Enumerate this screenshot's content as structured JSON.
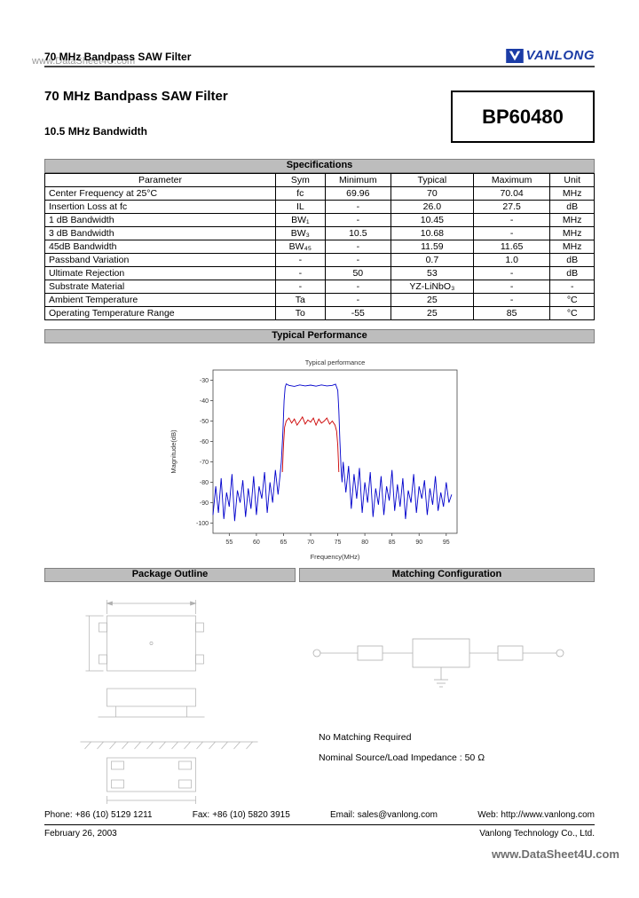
{
  "watermark": {
    "top": "www.DataSheet4U.com",
    "bottom": "www.DataSheet4U.com"
  },
  "header": {
    "running_title": "70 MHz Bandpass SAW Filter",
    "logo_text": "VANLONG"
  },
  "title_block": {
    "title": "70 MHz Bandpass SAW Filter",
    "subtitle": "10.5 MHz Bandwidth",
    "part_number": "BP60480"
  },
  "specs": {
    "section_title": "Specifications",
    "columns": [
      "Parameter",
      "Sym",
      "Minimum",
      "Typical",
      "Maximum",
      "Unit"
    ],
    "rows": [
      [
        "Center Frequency at 25°C",
        "fc",
        "69.96",
        "70",
        "70.04",
        "MHz"
      ],
      [
        "Insertion Loss at fc",
        "IL",
        "-",
        "26.0",
        "27.5",
        "dB"
      ],
      [
        "1 dB Bandwidth",
        "BW₁",
        "-",
        "10.45",
        "-",
        "MHz"
      ],
      [
        "3 dB Bandwidth",
        "BW₃",
        "10.5",
        "10.68",
        "-",
        "MHz"
      ],
      [
        "45dB Bandwidth",
        "BW₄₅",
        "-",
        "11.59",
        "11.65",
        "MHz"
      ],
      [
        "Passband Variation",
        "-",
        "-",
        "0.7",
        "1.0",
        "dB"
      ],
      [
        "Ultimate Rejection",
        "-",
        "50",
        "53",
        "-",
        "dB"
      ],
      [
        "Substrate Material",
        "-",
        "-",
        "YZ-LiNbO₃",
        "-",
        "-"
      ],
      [
        "Ambient Temperature",
        "Ta",
        "-",
        "25",
        "-",
        "°C"
      ],
      [
        "Operating Temperature Range",
        "To",
        "-55",
        "25",
        "85",
        "°C"
      ]
    ]
  },
  "performance": {
    "section_title": "Typical Performance"
  },
  "chart_data": {
    "type": "line",
    "title": "Typical performance",
    "xlabel": "Frequency(MHz)",
    "ylabel": "Magnitude(dB)",
    "xlim": [
      52,
      97
    ],
    "ylim": [
      -105,
      -25
    ],
    "xticks": [
      55,
      60,
      65,
      70,
      75,
      80,
      85,
      90,
      95
    ],
    "yticks": [
      -30,
      -40,
      -50,
      -60,
      -70,
      -80,
      -90,
      -100
    ],
    "legend_position": "none",
    "grid": false,
    "series": [
      {
        "name": "wideband response",
        "color": "#0000cc",
        "points": [
          [
            52.0,
            -96
          ],
          [
            52.5,
            -82
          ],
          [
            53.0,
            -95
          ],
          [
            53.5,
            -78
          ],
          [
            54.0,
            -98
          ],
          [
            54.5,
            -85
          ],
          [
            55.0,
            -92
          ],
          [
            55.5,
            -76
          ],
          [
            56.0,
            -99
          ],
          [
            56.5,
            -84
          ],
          [
            57.0,
            -90
          ],
          [
            57.5,
            -79
          ],
          [
            58.0,
            -97
          ],
          [
            58.5,
            -83
          ],
          [
            59.0,
            -93
          ],
          [
            59.5,
            -77
          ],
          [
            60.0,
            -96
          ],
          [
            60.5,
            -82
          ],
          [
            61.0,
            -88
          ],
          [
            61.5,
            -75
          ],
          [
            62.0,
            -95
          ],
          [
            62.5,
            -80
          ],
          [
            63.0,
            -90
          ],
          [
            63.5,
            -74
          ],
          [
            64.0,
            -86
          ],
          [
            64.3,
            -78
          ],
          [
            64.6,
            -70
          ],
          [
            64.9,
            -55
          ],
          [
            65.1,
            -40
          ],
          [
            65.3,
            -33.5
          ],
          [
            65.5,
            -31.8
          ],
          [
            66.0,
            -32.5
          ],
          [
            67.0,
            -33.0
          ],
          [
            68.0,
            -32.3
          ],
          [
            69.0,
            -32.8
          ],
          [
            70.0,
            -32.4
          ],
          [
            71.0,
            -32.9
          ],
          [
            72.0,
            -32.3
          ],
          [
            73.0,
            -32.8
          ],
          [
            74.0,
            -32.5
          ],
          [
            74.6,
            -31.9
          ],
          [
            75.0,
            -35
          ],
          [
            75.2,
            -45
          ],
          [
            75.4,
            -60
          ],
          [
            75.6,
            -72
          ],
          [
            75.8,
            -80
          ],
          [
            76.0,
            -70
          ],
          [
            76.5,
            -85
          ],
          [
            77.0,
            -72
          ],
          [
            77.5,
            -93
          ],
          [
            78.0,
            -76
          ],
          [
            78.5,
            -88
          ],
          [
            79.0,
            -73
          ],
          [
            79.5,
            -95
          ],
          [
            80.0,
            -80
          ],
          [
            80.5,
            -90
          ],
          [
            81.0,
            -75
          ],
          [
            81.5,
            -97
          ],
          [
            82.0,
            -83
          ],
          [
            82.5,
            -91
          ],
          [
            83.0,
            -77
          ],
          [
            83.5,
            -96
          ],
          [
            84.0,
            -82
          ],
          [
            84.5,
            -89
          ],
          [
            85.0,
            -74
          ],
          [
            85.5,
            -94
          ],
          [
            86.0,
            -81
          ],
          [
            86.5,
            -92
          ],
          [
            87.0,
            -78
          ],
          [
            87.5,
            -98
          ],
          [
            88.0,
            -84
          ],
          [
            88.5,
            -90
          ],
          [
            89.0,
            -76
          ],
          [
            89.5,
            -95
          ],
          [
            90.0,
            -82
          ],
          [
            90.5,
            -88
          ],
          [
            91.0,
            -79
          ],
          [
            91.5,
            -96
          ],
          [
            92.0,
            -83
          ],
          [
            92.5,
            -91
          ],
          [
            93.0,
            -77
          ],
          [
            93.5,
            -94
          ],
          [
            94.0,
            -85
          ],
          [
            94.5,
            -92
          ],
          [
            95.0,
            -80
          ],
          [
            95.5,
            -90
          ],
          [
            96.0,
            -86
          ]
        ]
      },
      {
        "name": "passband detail",
        "color": "#cc0000",
        "points": [
          [
            64.8,
            -75
          ],
          [
            65.0,
            -62
          ],
          [
            65.2,
            -53
          ],
          [
            65.5,
            -50
          ],
          [
            66.0,
            -48.5
          ],
          [
            66.5,
            -51
          ],
          [
            67.0,
            -49
          ],
          [
            67.5,
            -52
          ],
          [
            68.0,
            -50
          ],
          [
            68.5,
            -48
          ],
          [
            69.0,
            -51.5
          ],
          [
            69.5,
            -49.5
          ],
          [
            70.0,
            -50.5
          ],
          [
            70.5,
            -48.5
          ],
          [
            71.0,
            -52
          ],
          [
            71.5,
            -49
          ],
          [
            72.0,
            -51
          ],
          [
            72.5,
            -50
          ],
          [
            73.0,
            -48.5
          ],
          [
            73.5,
            -51.5
          ],
          [
            74.0,
            -50
          ],
          [
            74.5,
            -52
          ],
          [
            74.8,
            -55
          ],
          [
            75.0,
            -62
          ],
          [
            75.2,
            -75
          ]
        ]
      }
    ]
  },
  "package": {
    "section_title": "Package Outline"
  },
  "matching": {
    "section_title": "Matching Configuration",
    "note1": "No Matching Required",
    "note2": "Nominal Source/Load Impedance : 50 Ω"
  },
  "footer": {
    "phone_label": "Phone:",
    "phone": "+86 (10) 5129 1211",
    "fax_label": "Fax:",
    "fax": "+86 (10) 5820 3915",
    "email_label": "Email:",
    "email": "sales@vanlong.com",
    "web_label": "Web:",
    "web": "http://www.vanlong.com",
    "date": "February 26, 2003",
    "company": "Vanlong Technology Co., Ltd."
  }
}
